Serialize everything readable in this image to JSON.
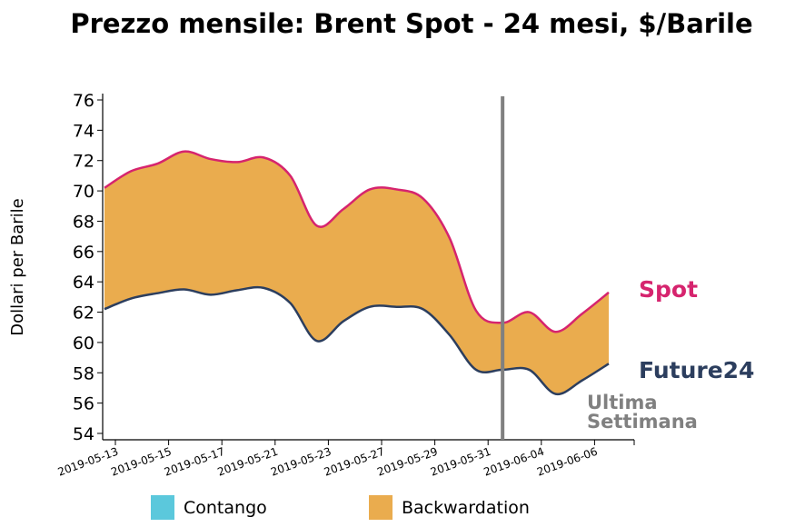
{
  "chart_data": {
    "type": "area",
    "title": "Prezzo mensile: Brent Spot - 24 mesi, $/Barile",
    "xlabel": "",
    "ylabel": "Dollari per Barile",
    "ylim": [
      54,
      76
    ],
    "yticks": [
      54,
      56,
      58,
      60,
      62,
      64,
      66,
      68,
      70,
      72,
      74,
      76
    ],
    "xtick_labels": [
      "2019-05-13",
      "2019-05-15",
      "2019-05-17",
      "2019-05-21",
      "2019-05-23",
      "2019-05-27",
      "2019-05-29",
      "2019-05-31",
      "2019-06-04",
      "2019-06-06"
    ],
    "grid": false,
    "series": [
      {
        "name": "Spot",
        "color": "#d6246e",
        "values": [
          70.2,
          71.3,
          71.8,
          72.6,
          72.1,
          71.9,
          72.2,
          71.0,
          67.7,
          68.8,
          70.1,
          70.1,
          69.5,
          66.9,
          62.1,
          61.3,
          62.0,
          60.7,
          61.9,
          63.3
        ]
      },
      {
        "name": "Future24",
        "color": "#2c3e5e",
        "values": [
          62.2,
          62.9,
          63.25,
          63.5,
          63.15,
          63.45,
          63.6,
          62.6,
          60.1,
          61.4,
          62.35,
          62.35,
          62.2,
          60.5,
          58.2,
          58.2,
          58.2,
          56.6,
          57.5,
          58.6
        ]
      }
    ],
    "fill_colors": {
      "contango": "#5bc8dc",
      "backwardation": "#eaac4e"
    },
    "last_week_marker_index": 15,
    "annotation": {
      "line1": "Ultima",
      "line2": "Settimana",
      "color": "#808080"
    },
    "legend": {
      "placement": "bottom",
      "items": [
        {
          "label": "Contango",
          "color": "#5bc8dc"
        },
        {
          "label": "Backwardation",
          "color": "#eaac4e"
        }
      ]
    }
  }
}
